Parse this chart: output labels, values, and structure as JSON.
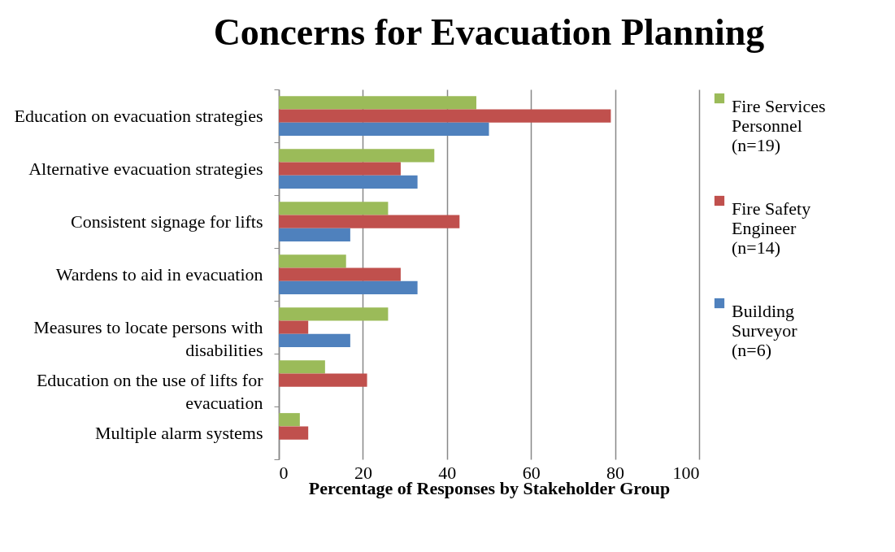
{
  "chart_data": {
    "type": "bar",
    "orientation": "horizontal",
    "title": "Concerns for Evacuation Planning",
    "xlabel": "Percentage of Responses by Stakeholder Group",
    "categories": [
      "Education on evacuation strategies",
      "Alternative evacuation strategies",
      "Consistent signage for lifts",
      "Wardens to aid in evacuation",
      "Measures to locate persons with disabilities",
      "Education on the use of lifts for evacuation",
      "Multiple alarm systems"
    ],
    "series": [
      {
        "name": "Fire Services Personnel (n=19)",
        "color": "#9bbb59",
        "values": [
          47,
          37,
          26,
          16,
          26,
          11,
          5
        ]
      },
      {
        "name": "Fire Safety Engineer (n=14)",
        "color": "#c0504d",
        "values": [
          79,
          29,
          43,
          29,
          7,
          21,
          7
        ]
      },
      {
        "name": "Building Surveyor (n=6)",
        "color": "#4f81bd",
        "values": [
          50,
          33,
          17,
          33,
          17,
          null,
          null
        ]
      }
    ],
    "xlim": [
      0,
      100
    ],
    "xticks": [
      0,
      20,
      40,
      60,
      80,
      100
    ],
    "grid": "x",
    "legend": "right"
  }
}
